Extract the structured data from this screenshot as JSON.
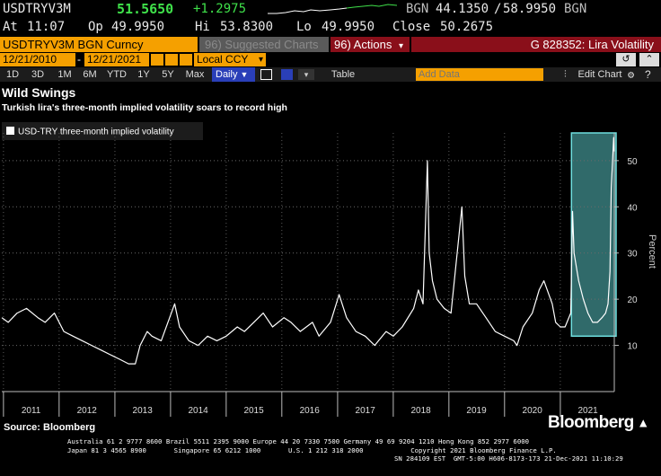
{
  "ticker": {
    "symbol": "USDTRYV3M",
    "last": "51.5650",
    "change": "+1.2975",
    "quote_source": "BGN",
    "bid": "44.1350",
    "ask": "58.9950",
    "quote_source_2": "BGN",
    "at_label": "At",
    "time": "11:07",
    "op_label": "Op",
    "open": "49.9950",
    "hi_label": "Hi",
    "high": "53.8300",
    "lo_label": "Lo",
    "low": "49.9950",
    "close_label": "Close",
    "close": "50.2675"
  },
  "security_bar": {
    "security": "USDTRYV3M BGN Curncy",
    "suggested": "96) Suggested Charts",
    "actions": "96) Actions",
    "actions_caret": "▾",
    "chart_id": "G 828352: Lira Volatility"
  },
  "date_bar": {
    "start": "12/21/2010",
    "end": "12/21/2021",
    "currency": "Local CCY",
    "caret": "▾"
  },
  "toolbar": {
    "ranges": [
      "1D",
      "3D",
      "1M",
      "6M",
      "YTD",
      "1Y",
      "5Y",
      "Max"
    ],
    "frequency": "Daily",
    "table": "Table",
    "add_data_placeholder": "Add Data",
    "edit_chart": "Edit Chart"
  },
  "chart_data": {
    "type": "line",
    "title": "Wild Swings",
    "subtitle": "Turkish lira's three-month implied volatility soars to record high",
    "legend": "USD-TRY three-month implied volatility",
    "ylabel": "Percent",
    "xlabel": "",
    "x_ticks": [
      "2011",
      "2012",
      "2013",
      "2014",
      "2015",
      "2016",
      "2017",
      "2018",
      "2019",
      "2020",
      "2021"
    ],
    "y_ticks": [
      10,
      20,
      30,
      40,
      50
    ],
    "xlim": [
      "2010-12-21",
      "2021-12-21"
    ],
    "ylim": [
      0,
      56
    ],
    "highlight_range": [
      "2021-03-15",
      "2021-12-21"
    ],
    "series": [
      {
        "x": [
          "2010-12-21",
          "2011-02-01",
          "2011-04-01",
          "2011-06-01",
          "2011-08-15",
          "2011-10-01",
          "2011-12-01",
          "2012-02-01",
          "2012-04-01",
          "2012-06-01",
          "2012-08-01",
          "2012-10-01",
          "2012-12-01",
          "2013-02-01",
          "2013-04-01",
          "2013-05-15",
          "2013-06-15",
          "2013-08-01",
          "2013-09-01",
          "2013-11-01",
          "2014-01-28",
          "2014-03-01",
          "2014-05-01",
          "2014-07-01",
          "2014-09-01",
          "2014-11-01",
          "2015-01-01",
          "2015-03-15",
          "2015-05-01",
          "2015-07-01",
          "2015-09-01",
          "2015-11-01",
          "2016-01-15",
          "2016-03-01",
          "2016-05-01",
          "2016-07-20",
          "2016-09-01",
          "2016-11-15",
          "2017-01-11",
          "2017-03-01",
          "2017-05-01",
          "2017-07-01",
          "2017-09-01",
          "2017-11-15",
          "2018-01-01",
          "2018-03-01",
          "2018-05-15",
          "2018-06-15",
          "2018-07-15",
          "2018-08-13",
          "2018-08-25",
          "2018-09-15",
          "2018-10-15",
          "2018-12-01",
          "2019-01-15",
          "2019-03-27",
          "2019-04-15",
          "2019-05-15",
          "2019-07-01",
          "2019-09-01",
          "2019-11-01",
          "2020-01-01",
          "2020-03-01",
          "2020-03-23",
          "2020-05-01",
          "2020-07-01",
          "2020-08-15",
          "2020-09-15",
          "2020-11-09",
          "2020-12-01",
          "2021-01-01",
          "2021-02-01",
          "2021-03-10",
          "2021-03-22",
          "2021-04-01",
          "2021-05-01",
          "2021-06-01",
          "2021-07-01",
          "2021-08-01",
          "2021-09-01",
          "2021-10-01",
          "2021-10-25",
          "2021-11-10",
          "2021-11-23",
          "2021-12-01",
          "2021-12-10",
          "2021-12-17",
          "2021-12-21"
        ],
        "values": [
          16,
          15,
          17,
          18,
          16,
          15,
          17,
          13,
          12,
          11,
          10,
          9,
          8,
          7,
          6,
          6,
          10,
          13,
          12,
          11,
          19,
          14,
          11,
          10,
          12,
          11,
          12,
          14,
          13,
          15,
          17,
          14,
          16,
          15,
          13,
          15,
          12,
          15,
          21,
          16,
          13,
          12,
          10,
          13,
          12,
          14,
          18,
          22,
          19,
          50,
          30,
          24,
          20,
          18,
          17,
          40,
          25,
          19,
          19,
          16,
          13,
          12,
          11,
          10,
          14,
          17,
          22,
          24,
          19,
          15,
          14,
          14,
          17,
          39,
          30,
          24,
          20,
          17,
          15,
          15,
          16,
          17,
          19,
          26,
          44,
          50,
          55,
          52
        ]
      }
    ]
  },
  "footer": {
    "source": "Source: Bloomberg",
    "brand": "Bloomberg",
    "contact_line1": "Australia 61 2 9777 8600 Brazil 5511 2395 9000 Europe 44 20 7330 7500 Germany 49 69 9204 1210 Hong Kong 852 2977 6000",
    "contact_line2": "Japan 81 3 4565 8900       Singapore 65 6212 1000       U.S. 1 212 318 2000            Copyright 2021 Bloomberg Finance L.P.",
    "sn_line": "SN 284109 EST  GMT-5:00 H606-8173-173 21-Dec-2021 11:10:29"
  },
  "colors": {
    "orange": "#f5a000",
    "dark_red": "#8a0f1a",
    "highlight": "#5fd3d3",
    "blue": "#2a3fb8"
  }
}
